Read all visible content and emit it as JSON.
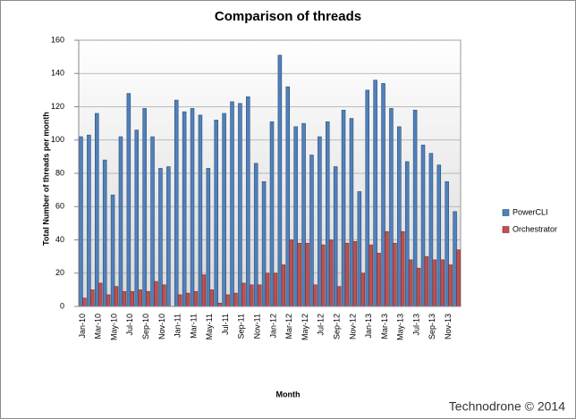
{
  "chart_data": {
    "type": "bar",
    "title": "Comparison of threads",
    "x_label": "Month",
    "y_label": "Total Number of threads per month",
    "categories": [
      "Jan-10",
      null,
      "Mar-10",
      null,
      "May-10",
      null,
      "Jul-10",
      null,
      "Sep-10",
      null,
      "Nov-10",
      null,
      "Jan-11",
      null,
      "Mar-11",
      null,
      "May-11",
      null,
      "Jul-11",
      null,
      "Sep-11",
      null,
      "Nov-11",
      null,
      "Jan-12",
      null,
      "Mar-12",
      null,
      "May-12",
      null,
      "Jul-12",
      null,
      "Sep-12",
      null,
      "Nov-12",
      null,
      "Jan-13",
      null,
      "Mar-13",
      null,
      "May-13",
      null,
      "Jul-13",
      null,
      "Sep-13",
      null,
      "Nov-13",
      null
    ],
    "series": [
      {
        "name": "PowerCLI",
        "color": "#4f81bd",
        "values": [
          102,
          103,
          116,
          88,
          67,
          102,
          128,
          106,
          119,
          102,
          83,
          84,
          124,
          117,
          119,
          115,
          83,
          112,
          116,
          123,
          122,
          126,
          86,
          75,
          111,
          151,
          132,
          108,
          110,
          91,
          102,
          111,
          84,
          118,
          113,
          69,
          130,
          136,
          134,
          119,
          108,
          87,
          118,
          97,
          92,
          85,
          75,
          57
        ]
      },
      {
        "name": "Orchestrator",
        "color": "#c0504d",
        "values": [
          5,
          10,
          14,
          7,
          12,
          9,
          9,
          10,
          9,
          15,
          13,
          0,
          7,
          8,
          9,
          19,
          10,
          2,
          7,
          8,
          14,
          13,
          13,
          20,
          20,
          25,
          40,
          38,
          38,
          13,
          37,
          40,
          12,
          38,
          39,
          20,
          37,
          32,
          45,
          38,
          45,
          28,
          23,
          30,
          28,
          28,
          25,
          34
        ]
      }
    ],
    "ylim": [
      0,
      160
    ],
    "yticks": [
      0,
      20,
      40,
      60,
      80,
      100,
      120,
      140,
      160
    ],
    "grid": true,
    "legend": "right",
    "annotations": [
      "Technodrone © 2014"
    ]
  }
}
